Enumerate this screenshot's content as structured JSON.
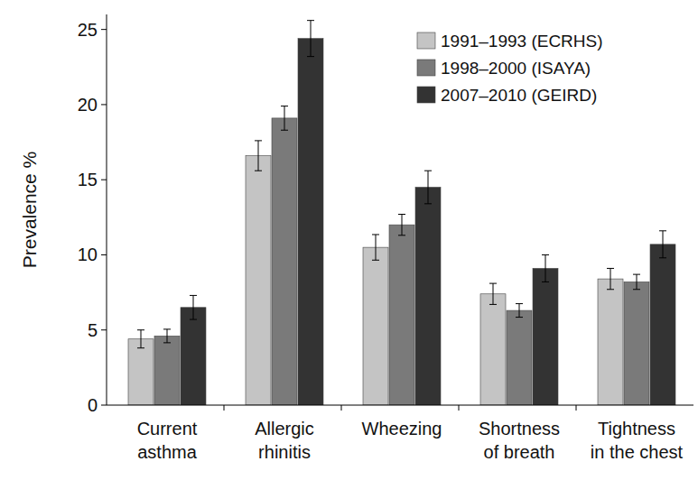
{
  "chart_data": {
    "type": "bar",
    "y_label": "Prevalence %",
    "categories": [
      "Current asthma",
      "Allergic rhinitis",
      "Wheezing",
      "Shortness of breath",
      "Tightness in the chest"
    ],
    "series": [
      {
        "name": "1991–1993 (ECRHS)",
        "color": "#c4c4c4",
        "values": [
          4.4,
          16.6,
          10.5,
          7.4,
          8.4
        ],
        "errors": [
          0.6,
          1.0,
          0.85,
          0.7,
          0.7
        ]
      },
      {
        "name": "1998–2000 (ISAYA)",
        "color": "#7a7a7a",
        "values": [
          4.6,
          19.1,
          12.0,
          6.3,
          8.2
        ],
        "errors": [
          0.45,
          0.8,
          0.7,
          0.45,
          0.5
        ]
      },
      {
        "name": "2007–2010 (GEIRD)",
        "color": "#333333",
        "values": [
          6.5,
          24.4,
          14.5,
          9.1,
          10.7
        ],
        "errors": [
          0.8,
          1.2,
          1.1,
          0.9,
          0.9
        ]
      }
    ],
    "ylim": [
      0,
      26
    ],
    "yticks": [
      0,
      5,
      10,
      15,
      20,
      25
    ],
    "grid": false,
    "legend": "top-right"
  }
}
